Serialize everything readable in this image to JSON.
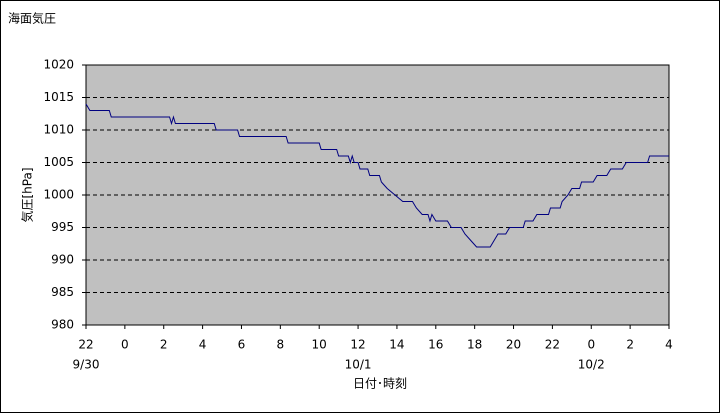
{
  "chart_data": {
    "type": "line",
    "title": "海面気圧",
    "xlabel": "日付･時刻",
    "ylabel": "気圧[hPa]",
    "xlim": [
      0,
      30
    ],
    "xticks": [
      {
        "value": 0,
        "label": "22"
      },
      {
        "value": 2,
        "label": "0"
      },
      {
        "value": 4,
        "label": "2"
      },
      {
        "value": 6,
        "label": "4"
      },
      {
        "value": 8,
        "label": "6"
      },
      {
        "value": 10,
        "label": "8"
      },
      {
        "value": 12,
        "label": "10"
      },
      {
        "value": 14,
        "label": "12"
      },
      {
        "value": 16,
        "label": "14"
      },
      {
        "value": 18,
        "label": "16"
      },
      {
        "value": 20,
        "label": "18"
      },
      {
        "value": 22,
        "label": "20"
      },
      {
        "value": 24,
        "label": "22"
      },
      {
        "value": 26,
        "label": "0"
      },
      {
        "value": 28,
        "label": "2"
      },
      {
        "value": 30,
        "label": "4"
      }
    ],
    "date_labels": [
      {
        "value": 0,
        "label": "9/30"
      },
      {
        "value": 14,
        "label": "10/1"
      },
      {
        "value": 26,
        "label": "10/2"
      }
    ],
    "ylim": [
      980,
      1020
    ],
    "yticks": [
      980,
      985,
      990,
      995,
      1000,
      1005,
      1010,
      1015,
      1020
    ],
    "grid": true,
    "background": "#c0c0c0",
    "series": [
      {
        "color": "#000080",
        "x": [
          0,
          0.2,
          1.2,
          1.3,
          4.3,
          4.4,
          4.5,
          4.6,
          6.6,
          6.7,
          7.8,
          7.9,
          10.3,
          10.4,
          12.0,
          12.1,
          12.9,
          13.0,
          13.5,
          13.6,
          13.7,
          13.8,
          14.0,
          14.1,
          14.5,
          14.6,
          15.1,
          15.2,
          15.5,
          15.9,
          16.3,
          16.8,
          17.0,
          17.3,
          17.6,
          17.7,
          17.8,
          18.0,
          18.6,
          18.8,
          19.3,
          19.5,
          19.8,
          20.1,
          20.8,
          21.0,
          21.2,
          21.6,
          21.8,
          22.5,
          22.6,
          23.0,
          23.2,
          23.8,
          23.9,
          24.4,
          24.5,
          24.8,
          25.0,
          25.4,
          25.5,
          26.1,
          26.3,
          26.8,
          27.0,
          27.6,
          27.8,
          28.9,
          29.0,
          30
        ],
        "values": [
          1014,
          1013,
          1013,
          1012,
          1012,
          1011,
          1012,
          1011,
          1011,
          1010,
          1010,
          1009,
          1009,
          1008,
          1008,
          1007,
          1007,
          1006,
          1006,
          1005,
          1006,
          1005,
          1005,
          1004,
          1004,
          1003,
          1003,
          1002,
          1001,
          1000,
          999,
          999,
          998,
          997,
          997,
          996,
          997,
          996,
          996,
          995,
          995,
          994,
          993,
          992,
          992,
          993,
          994,
          994,
          995,
          995,
          996,
          996,
          997,
          997,
          998,
          998,
          999,
          1000,
          1001,
          1001,
          1002,
          1002,
          1003,
          1003,
          1004,
          1004,
          1005,
          1005,
          1006,
          1006
        ]
      }
    ]
  }
}
